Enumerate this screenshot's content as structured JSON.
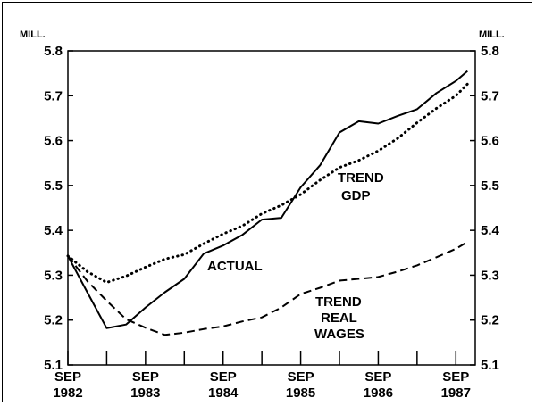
{
  "chart_data": {
    "type": "line",
    "unit_label": "MILL.",
    "ylim": [
      5.1,
      5.8
    ],
    "y_ticks": [
      "5.1",
      "5.2",
      "5.3",
      "5.4",
      "5.5",
      "5.6",
      "5.7",
      "5.8"
    ],
    "xlim": [
      1982.75,
      1988.0
    ],
    "x_ticks": [
      {
        "x": 1982.75,
        "label_top": "SEP",
        "label_bottom": "1982"
      },
      {
        "x": 1983.75,
        "label_top": "SEP",
        "label_bottom": "1983"
      },
      {
        "x": 1984.75,
        "label_top": "SEP",
        "label_bottom": "1984"
      },
      {
        "x": 1985.75,
        "label_top": "SEP",
        "label_bottom": "1985"
      },
      {
        "x": 1986.75,
        "label_top": "SEP",
        "label_bottom": "1986"
      },
      {
        "x": 1987.75,
        "label_top": "SEP",
        "label_bottom": "1987"
      }
    ],
    "minor_ticks": [
      1983.25,
      1984.25,
      1985.25,
      1986.25,
      1987.25
    ],
    "series": [
      {
        "name": "ACTUAL",
        "style": "solid",
        "points": [
          [
            1982.75,
            5.343
          ],
          [
            1983.0,
            5.262
          ],
          [
            1983.25,
            5.182
          ],
          [
            1983.5,
            5.19
          ],
          [
            1983.75,
            5.228
          ],
          [
            1984.0,
            5.262
          ],
          [
            1984.25,
            5.292
          ],
          [
            1984.5,
            5.348
          ],
          [
            1984.75,
            5.366
          ],
          [
            1985.0,
            5.39
          ],
          [
            1985.25,
            5.424
          ],
          [
            1985.5,
            5.428
          ],
          [
            1985.75,
            5.496
          ],
          [
            1986.0,
            5.545
          ],
          [
            1986.25,
            5.618
          ],
          [
            1986.5,
            5.643
          ],
          [
            1986.75,
            5.638
          ],
          [
            1987.0,
            5.655
          ],
          [
            1987.25,
            5.67
          ],
          [
            1987.5,
            5.706
          ],
          [
            1987.75,
            5.733
          ],
          [
            1987.9,
            5.755
          ]
        ]
      },
      {
        "name": "TREND GDP",
        "style": "dotted",
        "points": [
          [
            1982.75,
            5.343
          ],
          [
            1983.0,
            5.308
          ],
          [
            1983.25,
            5.284
          ],
          [
            1983.5,
            5.298
          ],
          [
            1983.75,
            5.318
          ],
          [
            1984.0,
            5.336
          ],
          [
            1984.25,
            5.346
          ],
          [
            1984.5,
            5.37
          ],
          [
            1984.75,
            5.392
          ],
          [
            1985.0,
            5.41
          ],
          [
            1985.25,
            5.437
          ],
          [
            1985.5,
            5.456
          ],
          [
            1985.75,
            5.48
          ],
          [
            1986.0,
            5.512
          ],
          [
            1986.25,
            5.54
          ],
          [
            1986.5,
            5.556
          ],
          [
            1986.75,
            5.577
          ],
          [
            1987.0,
            5.605
          ],
          [
            1987.25,
            5.64
          ],
          [
            1987.5,
            5.672
          ],
          [
            1987.75,
            5.7
          ],
          [
            1987.9,
            5.726
          ]
        ]
      },
      {
        "name": "TREND REAL WAGES",
        "style": "dashed",
        "points": [
          [
            1982.75,
            5.343
          ],
          [
            1983.0,
            5.287
          ],
          [
            1983.25,
            5.243
          ],
          [
            1983.5,
            5.202
          ],
          [
            1983.75,
            5.183
          ],
          [
            1984.0,
            5.167
          ],
          [
            1984.25,
            5.172
          ],
          [
            1984.5,
            5.18
          ],
          [
            1984.75,
            5.186
          ],
          [
            1985.0,
            5.197
          ],
          [
            1985.25,
            5.206
          ],
          [
            1985.5,
            5.228
          ],
          [
            1985.75,
            5.258
          ],
          [
            1986.0,
            5.272
          ],
          [
            1986.25,
            5.288
          ],
          [
            1986.5,
            5.292
          ],
          [
            1986.75,
            5.296
          ],
          [
            1987.0,
            5.308
          ],
          [
            1987.25,
            5.322
          ],
          [
            1987.5,
            5.34
          ],
          [
            1987.75,
            5.359
          ],
          [
            1987.9,
            5.374
          ]
        ]
      }
    ],
    "annotations": {
      "actual": [
        "ACTUAL"
      ],
      "trend_gdp": [
        "TREND",
        "GDP"
      ],
      "trend_real_wages": [
        "TREND",
        "REAL",
        "WAGES"
      ]
    },
    "grid": false,
    "legend": "none"
  }
}
